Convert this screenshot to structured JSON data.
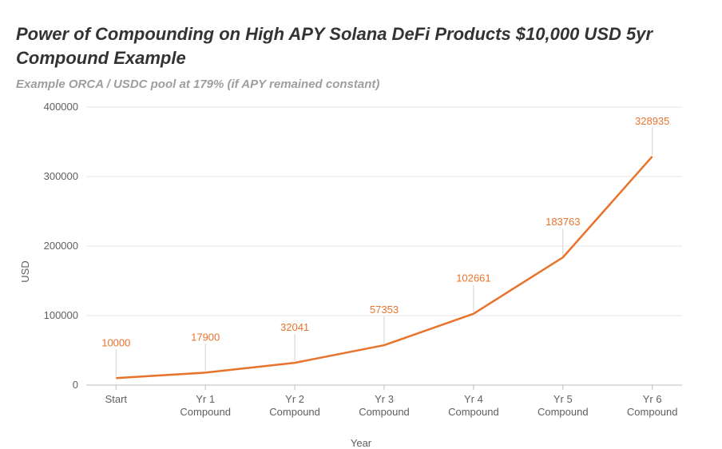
{
  "chart": {
    "title": "Power of Compounding on High APY Solana DeFi Products $10,000 USD 5yr Compound Example",
    "subtitle": "Example ORCA / USDC pool at 179%  (if APY remained constant)",
    "type": "line",
    "xlabel": "Year",
    "ylabel": "USD",
    "categories": [
      "Start",
      "Yr 1 Compound",
      "Yr 2 Compound",
      "Yr 3 Compound",
      "Yr 4 Compound",
      "Yr 5 Compound",
      "Yr 6 Compound"
    ],
    "values": [
      10000,
      17900,
      32041,
      57353,
      102661,
      183763,
      328935
    ],
    "line_color": "#e8742c",
    "label_color": "#e8742c",
    "line_width": 2.5,
    "ylim": [
      0,
      400000
    ],
    "ytick_step": 100000,
    "yticks": [
      0,
      100000,
      200000,
      300000,
      400000
    ],
    "background_color": "#ffffff",
    "grid_color": "#e6e6e6",
    "axis_color": "#bdbdbd",
    "tick_text_color": "#5f5f5f",
    "title_fontsize": 22,
    "subtitle_fontsize": 15,
    "subtitle_color": "#9e9e9e",
    "label_fontsize": 13,
    "data_label_fontsize": 13,
    "leader_color": "#d0d0d0",
    "label_offset_y": 40
  }
}
